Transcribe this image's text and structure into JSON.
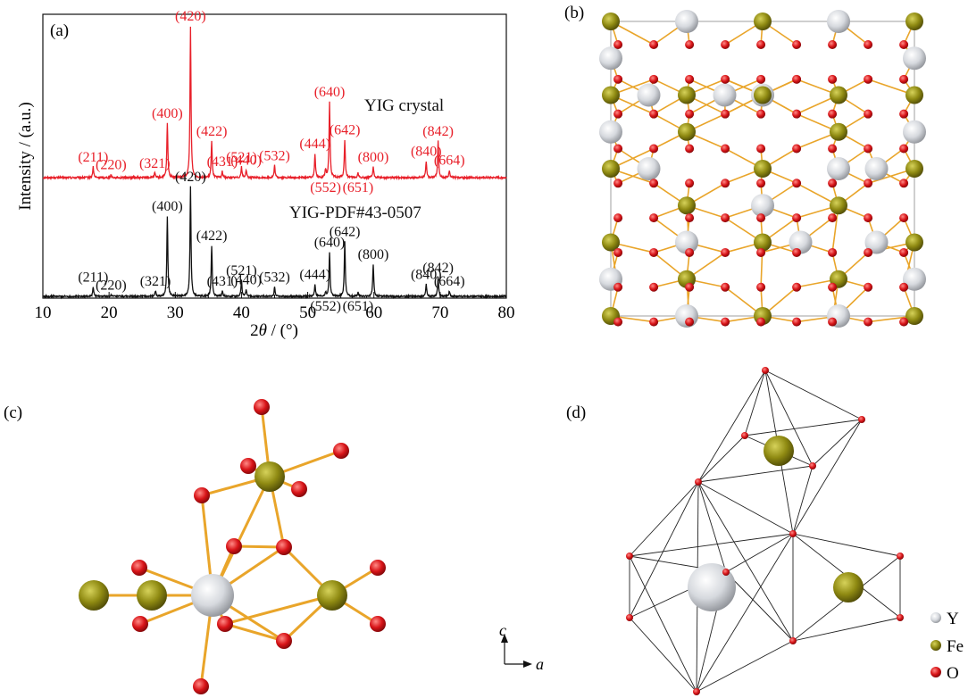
{
  "panels": {
    "a": "(a)",
    "b": "(b)",
    "c": "(c)",
    "d": "(d)"
  },
  "colors": {
    "measured": "#e8202a",
    "reference": "#111111",
    "Y": "#d8dbe0",
    "Fe": "#8f8a12",
    "O": "#d81418",
    "bond": "#e9a52a",
    "edge": "#222222"
  },
  "chart_data": {
    "type": "line",
    "xlabel_prefix": "2",
    "xlabel_symbol": "θ",
    "xlabel_suffix": " / (°)",
    "ylabel": "Intensity / (a.u.)",
    "xlim": [
      10,
      80
    ],
    "xticks": [
      10,
      20,
      30,
      40,
      50,
      60,
      70,
      80
    ],
    "yticks_shown": false,
    "series": [
      {
        "name": "YIG crystal",
        "color": "#e8202a",
        "offset": 1.0,
        "peaks": [
          {
            "x": 17.6,
            "h": 0.07,
            "label": "(211)"
          },
          {
            "x": 20.3,
            "h": 0.02,
            "label": "(220)"
          },
          {
            "x": 26.9,
            "h": 0.03,
            "label": "(321)"
          },
          {
            "x": 28.8,
            "h": 0.36,
            "label": "(400)"
          },
          {
            "x": 32.3,
            "h": 1.0,
            "label": "(420)"
          },
          {
            "x": 35.5,
            "h": 0.24,
            "label": "(422)"
          },
          {
            "x": 37.1,
            "h": 0.04,
            "label": "(431)"
          },
          {
            "x": 40.0,
            "h": 0.07,
            "label": "(521)"
          },
          {
            "x": 40.7,
            "h": 0.05,
            "label": "(440)"
          },
          {
            "x": 45.0,
            "h": 0.08,
            "label": "(532)"
          },
          {
            "x": 51.1,
            "h": 0.16,
            "label": "(444)"
          },
          {
            "x": 52.7,
            "h": 0.05,
            "label": "(552)"
          },
          {
            "x": 53.3,
            "h": 0.5,
            "label": "(640)"
          },
          {
            "x": 55.6,
            "h": 0.25,
            "label": "(642)"
          },
          {
            "x": 57.6,
            "h": 0.03,
            "label": "(651)"
          },
          {
            "x": 59.9,
            "h": 0.07,
            "label": "(800)"
          },
          {
            "x": 67.9,
            "h": 0.11,
            "label": "(840)"
          },
          {
            "x": 69.7,
            "h": 0.24,
            "label": "(842)"
          },
          {
            "x": 71.4,
            "h": 0.05,
            "label": "(664)"
          }
        ]
      },
      {
        "name": "YIG-PDF#43-0507",
        "color": "#111111",
        "offset": 0.0,
        "peaks": [
          {
            "x": 17.6,
            "h": 0.07,
            "label": "(211)"
          },
          {
            "x": 20.3,
            "h": 0.01,
            "label": "(220)"
          },
          {
            "x": 27.0,
            "h": 0.04,
            "label": "(321)"
          },
          {
            "x": 28.8,
            "h": 0.6,
            "label": "(400)"
          },
          {
            "x": 32.3,
            "h": 0.82,
            "label": "(420)"
          },
          {
            "x": 35.5,
            "h": 0.38,
            "label": "(422)"
          },
          {
            "x": 37.1,
            "h": 0.04,
            "label": "(431)"
          },
          {
            "x": 40.0,
            "h": 0.12,
            "label": "(521)"
          },
          {
            "x": 40.7,
            "h": 0.05,
            "label": "(440)"
          },
          {
            "x": 45.0,
            "h": 0.07,
            "label": "(532)"
          },
          {
            "x": 51.1,
            "h": 0.09,
            "label": "(444)"
          },
          {
            "x": 52.7,
            "h": 0.03,
            "label": "(552)"
          },
          {
            "x": 53.3,
            "h": 0.33,
            "label": "(640)"
          },
          {
            "x": 55.6,
            "h": 0.41,
            "label": "(642)"
          },
          {
            "x": 57.6,
            "h": 0.03,
            "label": "(651)"
          },
          {
            "x": 59.9,
            "h": 0.24,
            "label": "(800)"
          },
          {
            "x": 67.9,
            "h": 0.09,
            "label": "(840)"
          },
          {
            "x": 69.7,
            "h": 0.14,
            "label": "(842)"
          },
          {
            "x": 71.4,
            "h": 0.04,
            "label": "(664)"
          }
        ]
      }
    ]
  },
  "legend": {
    "items": [
      {
        "label": "Y",
        "color": "#d8dbe0"
      },
      {
        "label": "Fe",
        "color": "#8f8a12"
      },
      {
        "label": "O",
        "color": "#d81418"
      }
    ]
  },
  "axes_indicator": {
    "c": "c",
    "a": "a"
  }
}
